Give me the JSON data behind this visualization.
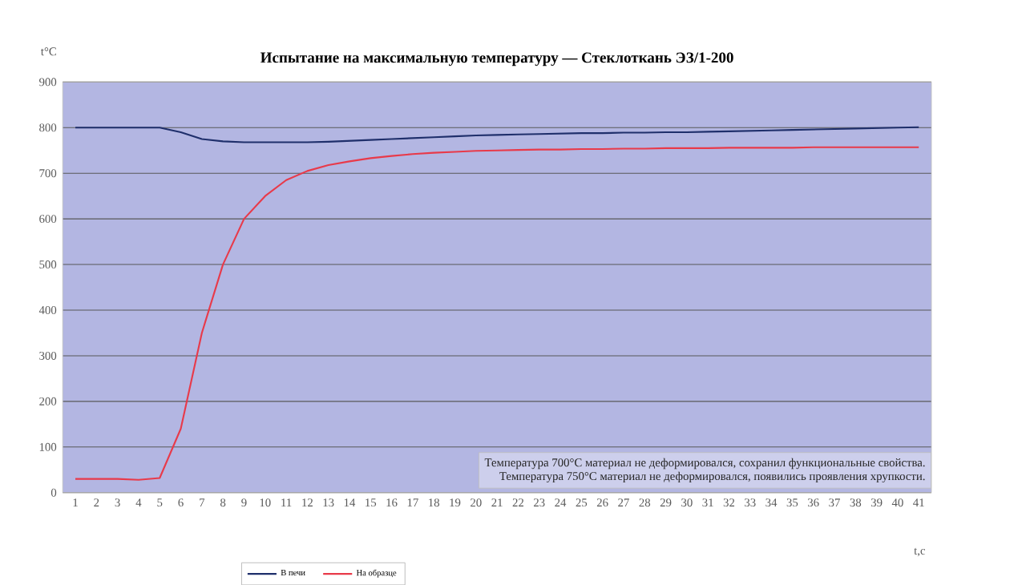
{
  "chart_data": {
    "type": "line",
    "title": "Испытание на максимальную температуру — Стеклоткань ЭЗ/1-200",
    "xlabel": "t,c",
    "ylabel": "t°C",
    "categories": [
      "1",
      "2",
      "3",
      "4",
      "5",
      "6",
      "7",
      "8",
      "9",
      "10",
      "11",
      "12",
      "13",
      "14",
      "15",
      "16",
      "17",
      "18",
      "19",
      "20",
      "21",
      "22",
      "23",
      "24",
      "25",
      "26",
      "27",
      "28",
      "29",
      "30",
      "31",
      "32",
      "33",
      "34",
      "35",
      "36",
      "37",
      "38",
      "39",
      "40",
      "41"
    ],
    "series": [
      {
        "name": "В печи",
        "color": "#1f2f6b",
        "values": [
          800,
          800,
          800,
          800,
          800,
          790,
          775,
          770,
          768,
          768,
          768,
          768,
          769,
          771,
          773,
          775,
          777,
          779,
          781,
          783,
          784,
          785,
          786,
          787,
          788,
          788,
          789,
          789,
          790,
          790,
          791,
          792,
          793,
          794,
          795,
          796,
          797,
          798,
          799,
          800,
          801
        ]
      },
      {
        "name": "На образце",
        "color": "#e83a4a",
        "values": [
          30,
          30,
          30,
          28,
          32,
          140,
          350,
          500,
          600,
          650,
          685,
          705,
          718,
          726,
          733,
          738,
          742,
          745,
          747,
          749,
          750,
          751,
          752,
          752,
          753,
          753,
          754,
          754,
          755,
          755,
          755,
          756,
          756,
          756,
          756,
          757,
          757,
          757,
          757,
          757,
          757
        ]
      }
    ],
    "ylim": [
      0,
      900
    ],
    "yticks": [
      0,
      100,
      200,
      300,
      400,
      500,
      600,
      700,
      800,
      900
    ],
    "grid": "y",
    "legend": "bottom",
    "marker": "none",
    "line_style": "solid",
    "annotations": [
      "Температура 700°С материал не деформировался, сохранил функциональные свойства.",
      "Температура 750°С материал не деформировался, появились проявления хрупкости."
    ]
  }
}
